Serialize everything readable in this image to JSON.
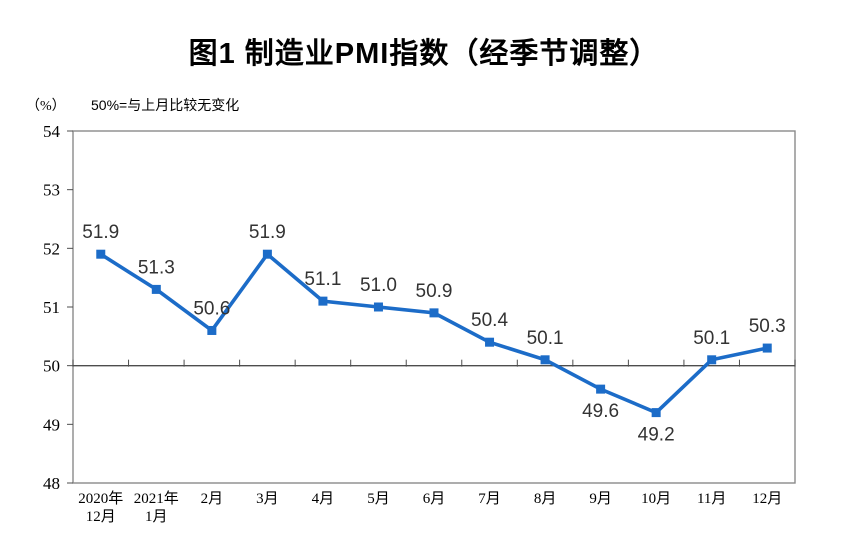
{
  "chart_data": {
    "type": "line",
    "title": "图1 制造业PMI指数（经季节调整）",
    "unit_label": "（%）",
    "note": "50%=与上月比较无变化",
    "categories": [
      "2020年\n12月",
      "2021年\n1月",
      "2月",
      "3月",
      "4月",
      "5月",
      "6月",
      "7月",
      "8月",
      "9月",
      "10月",
      "11月",
      "12月"
    ],
    "values": [
      51.9,
      51.3,
      50.6,
      51.9,
      51.1,
      51.0,
      50.9,
      50.4,
      50.1,
      49.6,
      49.2,
      50.1,
      50.3
    ],
    "point_labels": [
      "51.9",
      "51.3",
      "50.6",
      "51.9",
      "51.1",
      "51.0",
      "50.9",
      "50.4",
      "50.1",
      "49.6",
      "49.2",
      "50.1",
      "50.3"
    ],
    "label_below_indices": [
      9,
      10
    ],
    "ylim": [
      48,
      54
    ],
    "ytick_step": 1,
    "ytick_labels": [
      "48",
      "49",
      "50",
      "51",
      "52",
      "53",
      "54"
    ],
    "reference_value": 50,
    "grid": "off",
    "legend": "none",
    "colors": {
      "line": "#1C6CC8",
      "marker": "#1C6CC8",
      "plot_border": "#8a8a8a",
      "reference_line": "#4d4d4d",
      "data_label": "#333333",
      "axis_text": "#000000",
      "background": "#ffffff"
    }
  }
}
